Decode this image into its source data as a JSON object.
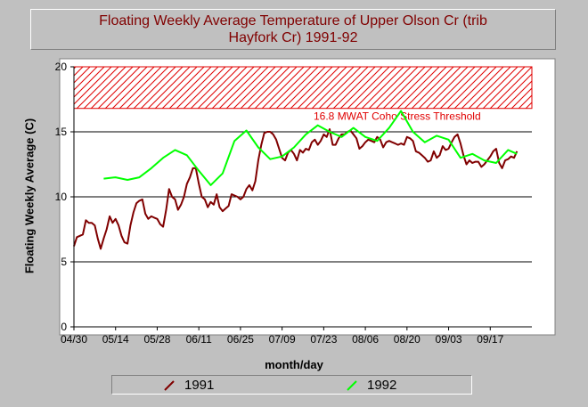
{
  "title_line1": "Floating Weekly Average Temperature of Upper Olson Cr (trib",
  "title_line2": "Hayfork Cr) 1991-92",
  "chart_data": {
    "type": "line",
    "xlabel": "month/day",
    "ylabel": "Floating Weekly Average (C)",
    "ylim": [
      0,
      20
    ],
    "yticks": [
      0,
      5,
      10,
      15,
      20
    ],
    "xlim": [
      "04/30",
      "10/01"
    ],
    "xticks": [
      "04/30",
      "05/14",
      "05/28",
      "06/11",
      "06/25",
      "07/09",
      "07/23",
      "08/06",
      "08/20",
      "09/03",
      "09/17"
    ],
    "grid": "horizontal",
    "threshold": {
      "value": 16.8,
      "label": "16.8 MWAT Coho Stress Threshold",
      "band_top": 20,
      "color": "#e00000"
    },
    "legend_position": "bottom",
    "series": [
      {
        "name": "1991",
        "color": "#800000",
        "x": [
          "04/30",
          "05/01",
          "05/02",
          "05/03",
          "05/04",
          "05/05",
          "05/06",
          "05/07",
          "05/08",
          "05/09",
          "05/10",
          "05/11",
          "05/12",
          "05/13",
          "05/14",
          "05/15",
          "05/16",
          "05/17",
          "05/18",
          "05/19",
          "05/20",
          "05/21",
          "05/22",
          "05/23",
          "05/24",
          "05/25",
          "05/26",
          "05/27",
          "05/28",
          "05/29",
          "05/30",
          "05/31",
          "06/01",
          "06/02",
          "06/03",
          "06/04",
          "06/05",
          "06/06",
          "06/07",
          "06/08",
          "06/09",
          "06/10",
          "06/11",
          "06/12",
          "06/13",
          "06/14",
          "06/15",
          "06/16",
          "06/17",
          "06/18",
          "06/19",
          "06/20",
          "06/21",
          "06/22",
          "06/23",
          "06/24",
          "06/25",
          "06/26",
          "06/27",
          "06/28",
          "06/29",
          "06/30",
          "07/01",
          "07/02",
          "07/03",
          "07/04",
          "07/05",
          "07/06",
          "07/07",
          "07/08",
          "07/09",
          "07/10",
          "07/11",
          "07/12",
          "07/13",
          "07/14",
          "07/15",
          "07/16",
          "07/17",
          "07/18",
          "07/19",
          "07/20",
          "07/21",
          "07/22",
          "07/23",
          "07/24",
          "07/25",
          "07/26",
          "07/27",
          "07/28",
          "07/29",
          "07/30",
          "07/31",
          "08/01",
          "08/02",
          "08/03",
          "08/04",
          "08/05",
          "08/06",
          "08/07",
          "08/08",
          "08/09",
          "08/10",
          "08/11",
          "08/12",
          "08/13",
          "08/14",
          "08/15",
          "08/16",
          "08/17",
          "08/18",
          "08/19",
          "08/20",
          "08/21",
          "08/22",
          "08/23",
          "08/24",
          "08/25",
          "08/26",
          "08/27",
          "08/28",
          "08/29",
          "08/30",
          "08/31",
          "09/01",
          "09/02",
          "09/03",
          "09/04",
          "09/05",
          "09/06",
          "09/07",
          "09/08",
          "09/09",
          "09/10",
          "09/11",
          "09/12",
          "09/13",
          "09/14",
          "09/15",
          "09/16",
          "09/17",
          "09/18",
          "09/19",
          "09/20",
          "09/21",
          "09/22",
          "09/23",
          "09/24",
          "09/25",
          "09/26"
        ],
        "values": [
          6.2,
          6.9,
          7.0,
          7.1,
          8.2,
          8.0,
          8.0,
          7.8,
          6.8,
          6.0,
          6.8,
          7.5,
          8.5,
          8.0,
          8.3,
          7.8,
          7.0,
          6.5,
          6.4,
          7.8,
          8.8,
          9.5,
          9.7,
          9.8,
          8.7,
          8.3,
          8.5,
          8.4,
          8.3,
          7.9,
          7.7,
          9.0,
          10.6,
          10.0,
          9.8,
          9.0,
          9.4,
          10.0,
          11.0,
          11.5,
          12.2,
          12.2,
          11.0,
          10.0,
          9.8,
          9.2,
          9.6,
          9.4,
          10.2,
          9.2,
          8.9,
          9.1,
          9.3,
          10.2,
          10.1,
          10.0,
          9.8,
          10.0,
          10.6,
          10.9,
          10.5,
          11.2,
          12.8,
          14.0,
          14.9,
          15.0,
          15.0,
          14.8,
          14.4,
          13.7,
          13.0,
          12.8,
          13.4,
          13.6,
          13.3,
          12.8,
          13.6,
          13.4,
          13.7,
          13.6,
          14.2,
          14.4,
          14.0,
          14.3,
          14.8,
          14.6,
          15.2,
          14.0,
          14.0,
          14.5,
          14.8,
          14.8,
          15.0,
          15.1,
          14.8,
          14.5,
          13.7,
          13.9,
          14.2,
          14.4,
          14.3,
          14.2,
          14.6,
          14.4,
          13.8,
          14.2,
          14.3,
          14.2,
          14.1,
          14.0,
          14.1,
          14.0,
          14.6,
          14.5,
          14.3,
          13.5,
          13.4,
          13.2,
          13.0,
          12.7,
          12.8,
          13.5,
          13.0,
          13.2,
          13.9,
          13.6,
          13.7,
          14.2,
          14.6,
          14.8,
          14.1,
          13.2,
          12.5,
          12.8,
          12.6,
          12.7,
          12.7,
          12.3,
          12.5,
          12.8,
          13.1,
          13.5,
          13.7,
          12.6,
          12.2,
          12.8,
          12.9,
          13.1,
          13.0,
          13.5
        ]
      },
      {
        "name": "1992",
        "color": "#00ff00",
        "x": [
          "05/10",
          "05/14",
          "05/18",
          "05/22",
          "05/26",
          "05/30",
          "06/03",
          "06/07",
          "06/11",
          "06/15",
          "06/19",
          "06/23",
          "06/27",
          "07/01",
          "07/05",
          "07/09",
          "07/13",
          "07/17",
          "07/21",
          "07/25",
          "07/29",
          "08/02",
          "08/06",
          "08/10",
          "08/14",
          "08/18",
          "08/22",
          "08/26",
          "08/30",
          "09/03",
          "09/07",
          "09/11",
          "09/15",
          "09/19",
          "09/23",
          "09/26"
        ],
        "values": [
          11.4,
          11.5,
          11.3,
          11.5,
          12.2,
          13.0,
          13.6,
          13.2,
          12.0,
          10.9,
          11.8,
          14.3,
          15.1,
          13.8,
          12.9,
          13.1,
          13.8,
          14.8,
          15.5,
          15.0,
          14.6,
          15.3,
          14.6,
          14.3,
          15.3,
          16.6,
          15.0,
          14.2,
          14.7,
          14.4,
          13.0,
          13.3,
          12.8,
          12.6,
          13.6,
          13.3
        ]
      }
    ]
  }
}
